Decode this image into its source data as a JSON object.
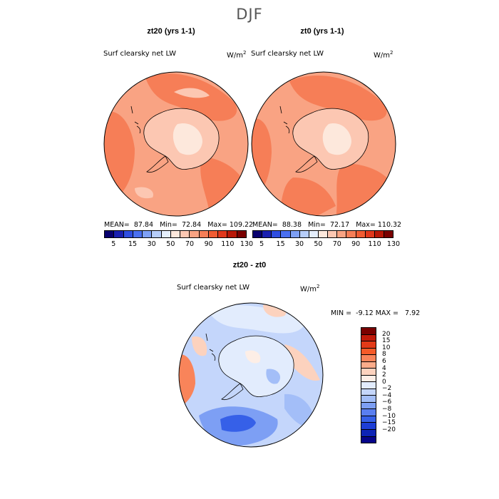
{
  "figure": {
    "title": "DJF"
  },
  "panels": [
    {
      "title": "zt20 (yrs 1-1)",
      "variable": "Surf clearsky net LW",
      "units": "W/m",
      "units_exp": "2",
      "mean_label": "MEAN=",
      "mean": "87.84",
      "min_label": "Min=",
      "min": "72.84",
      "max_label": "Max=",
      "max": "109.22"
    },
    {
      "title": "zt0 (yrs 1-1)",
      "variable": "Surf clearsky net LW",
      "units": "W/m",
      "units_exp": "2",
      "mean_label": "MEAN=",
      "mean": "88.38",
      "min_label": "Min=",
      "min": "72.17",
      "max_label": "Max=",
      "max": "110.32"
    }
  ],
  "diff_panel": {
    "title": "zt20 - zt0",
    "variable": "Surf clearsky net LW",
    "units": "W/m",
    "units_exp": "2",
    "min_label": "MIN =",
    "min": "-9.12",
    "max_label": "MAX =",
    "max": "7.92"
  },
  "colorbar_top": {
    "colors": [
      "#08006e",
      "#1a20b0",
      "#2f4ee0",
      "#4a70f0",
      "#7ea0f5",
      "#b6cdf9",
      "#e4eefc",
      "#fde8dc",
      "#fcc7b2",
      "#f9a383",
      "#f67e57",
      "#f05c33",
      "#e0381c",
      "#b81808",
      "#7a0000"
    ],
    "tick_labels": [
      "5",
      "15",
      "30",
      "50",
      "70",
      "90",
      "110",
      "130"
    ]
  },
  "colorbar_diff": {
    "colors": [
      "#7a0000",
      "#c11a0a",
      "#e33a18",
      "#f55a28",
      "#f9845a",
      "#fbac8a",
      "#fcd2be",
      "#fdeee6",
      "#e2ecfd",
      "#c4d6fb",
      "#a3bef8",
      "#7d9ff4",
      "#5a7ff0",
      "#3660e8",
      "#1d3ed6",
      "#0d24b6",
      "#06048a"
    ],
    "tick_labels": [
      "20",
      "15",
      "10",
      "8",
      "6",
      "4",
      "2",
      "0",
      "-2",
      "-4",
      "-6",
      "-8",
      "-10",
      "-15",
      "-20"
    ]
  },
  "map_colors": {
    "top_background": "#f9a383",
    "top_dark": "#f67e57",
    "top_light": "#fcc7b2",
    "top_lightest": "#fde8dc",
    "diff_background": "#c4d6fb",
    "diff_light": "#e2ecfd",
    "diff_mid": "#a3bef8",
    "diff_dark": "#5a7ff0",
    "diff_warm": "#fcd2be",
    "diff_warm_dark": "#f9845a"
  }
}
